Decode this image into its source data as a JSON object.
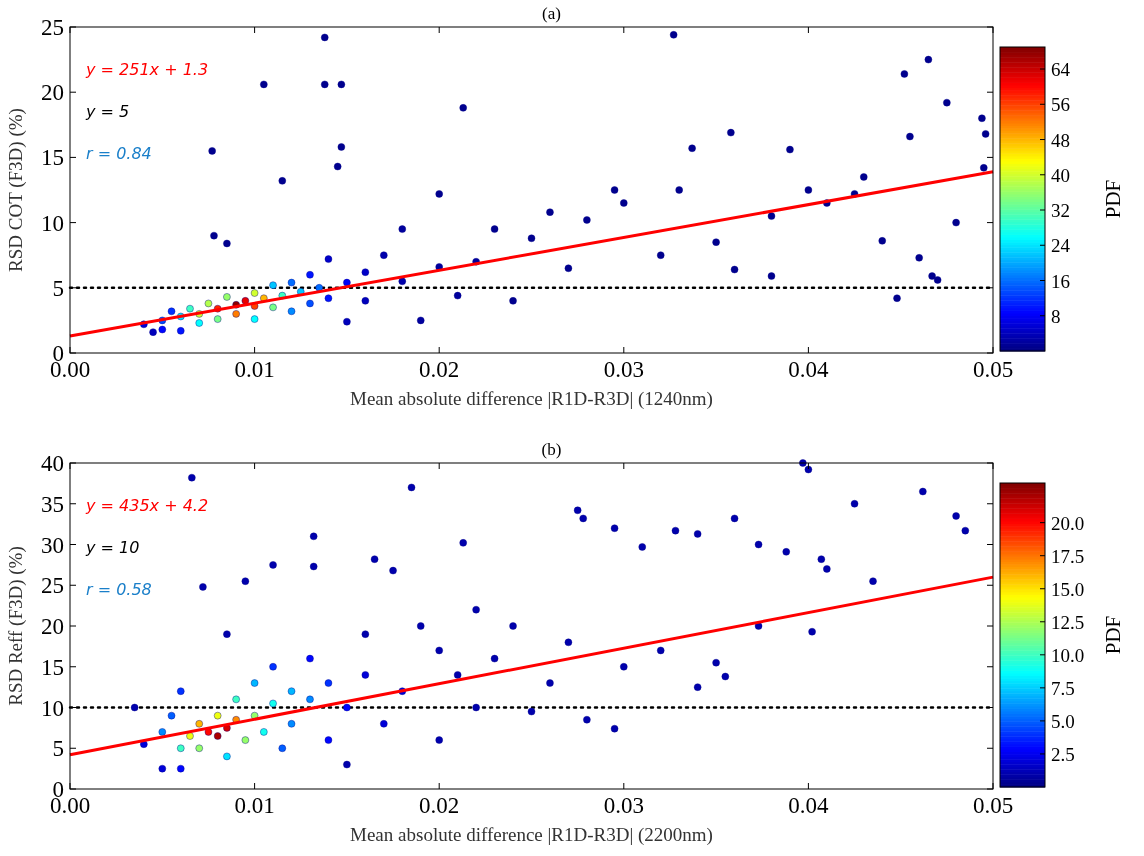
{
  "chart_data": [
    {
      "type": "scatter",
      "title": "(a)",
      "xlabel": "Mean absolute difference |R1D-R3D| (1240nm)",
      "ylabel": "RSD COT (F3D) (%)",
      "clabel": "PDF",
      "xlim": [
        0,
        0.05
      ],
      "xticks": [
        {
          "value": 0,
          "label": "0.00"
        },
        0.01,
        0.02,
        0.03,
        0.04,
        0.05
      ],
      "ylim": [
        0,
        25
      ],
      "yticks": [
        0,
        5,
        10,
        15,
        20,
        25
      ],
      "clim": [
        0,
        69
      ],
      "cticks": [
        8,
        16,
        24,
        32,
        40,
        48,
        56,
        64
      ],
      "series": [
        {
          "type": "scatter",
          "marker": "circle",
          "color": "#00008b",
          "x": [
            0.004,
            0.0045,
            0.005,
            0.005,
            0.0055,
            0.006,
            0.006,
            0.0065,
            0.007,
            0.007,
            0.0075,
            0.008,
            0.008,
            0.0085,
            0.009,
            0.009,
            0.0095,
            0.01,
            0.01,
            0.01,
            0.0105,
            0.011,
            0.011,
            0.0115,
            0.012,
            0.012,
            0.0125,
            0.013,
            0.013,
            0.0135,
            0.014,
            0.014,
            0.015,
            0.015,
            0.016,
            0.016,
            0.017,
            0.018,
            0.018,
            0.019,
            0.02,
            0.02,
            0.021,
            0.022,
            0.023,
            0.024,
            0.025,
            0.026,
            0.027,
            0.028,
            0.0295,
            0.03,
            0.032,
            0.033,
            0.035,
            0.036,
            0.038,
            0.038,
            0.04,
            0.041,
            0.0425,
            0.043,
            0.044,
            0.0448,
            0.046,
            0.0467,
            0.047,
            0.048,
            0.0495,
            0.0138,
            0.0327,
            0.0105,
            0.0138,
            0.0147,
            0.0213,
            0.0077,
            0.0147,
            0.0145,
            0.0465,
            0.0452,
            0.0475,
            0.0494,
            0.0496,
            0.0455,
            0.0358,
            0.039,
            0.0337,
            0.0115,
            0.0078,
            0.0085
          ],
          "values": [
            2.2,
            1.6,
            2.5,
            1.8,
            3.2,
            2.8,
            1.7,
            3.4,
            3.0,
            2.3,
            3.8,
            3.4,
            2.6,
            4.3,
            3.7,
            3.0,
            4.0,
            3.6,
            4.6,
            2.6,
            4.2,
            3.5,
            5.2,
            4.4,
            3.2,
            5.4,
            4.7,
            3.8,
            6.0,
            5.0,
            4.2,
            7.2,
            5.4,
            2.4,
            6.2,
            4.0,
            7.5,
            5.5,
            9.5,
            2.5,
            6.6,
            12.2,
            4.4,
            7.0,
            9.5,
            4.0,
            8.8,
            10.8,
            6.5,
            10.2,
            12.5,
            11.5,
            7.5,
            12.5,
            8.5,
            6.4,
            10.5,
            5.9,
            12.5,
            11.5,
            12.2,
            13.5,
            8.6,
            4.2,
            7.3,
            5.9,
            5.6,
            10.0,
            14.2,
            24.2,
            24.4,
            20.6,
            20.6,
            20.6,
            18.8,
            15.5,
            15.8,
            14.3,
            22.5,
            21.4,
            19.2,
            18.0,
            16.8,
            16.6,
            16.9,
            15.6,
            15.7,
            13.2,
            9.0,
            8.4
          ],
          "cvalues": [
            6,
            4,
            14,
            9,
            12,
            24,
            10,
            30,
            40,
            26,
            38,
            58,
            34,
            36,
            68,
            52,
            62,
            56,
            40,
            26,
            48,
            34,
            22,
            30,
            18,
            16,
            22,
            14,
            10,
            16,
            10,
            5,
            8,
            4,
            5,
            4,
            3,
            3,
            2,
            2,
            2,
            1,
            2,
            2,
            1,
            1,
            1,
            1,
            1,
            1,
            1,
            1,
            1,
            1,
            1,
            1,
            1,
            1,
            1,
            1,
            1,
            1,
            1,
            1,
            1,
            1,
            1,
            1,
            1,
            1,
            1,
            1,
            1,
            1,
            1,
            1,
            1,
            1,
            1,
            1,
            1,
            1,
            1,
            1,
            1,
            1,
            1,
            1,
            1,
            1
          ]
        },
        {
          "type": "line",
          "name": "y = 251x + 1.3",
          "color": "#ff0000",
          "x": [
            0,
            0.05
          ],
          "values": [
            1.3,
            13.9
          ]
        }
      ],
      "ref_lines": [
        {
          "axis": "y",
          "value": 5,
          "label": "y = 5",
          "color": "#000000",
          "line_style": "dotted"
        }
      ],
      "annotations": [
        "r = 0.84"
      ]
    },
    {
      "type": "scatter",
      "title": "(b)",
      "xlabel": "Mean absolute difference |R1D-R3D|  (2200nm)",
      "ylabel": "RSD Reff (F3D) (%)",
      "clabel": "PDF",
      "xlim": [
        0,
        0.05
      ],
      "xticks": [
        {
          "value": 0,
          "label": "0.00"
        },
        0.01,
        0.02,
        0.03,
        0.04,
        0.05
      ],
      "ylim": [
        0,
        40
      ],
      "yticks": [
        0,
        5,
        10,
        15,
        20,
        25,
        30,
        35,
        40
      ],
      "clim": [
        0,
        23
      ],
      "cticks": [
        2.5,
        {
          "value": 5,
          "label": "5.0"
        },
        7.5,
        {
          "value": 10,
          "label": "10.0"
        },
        12.5,
        {
          "value": 15,
          "label": "15.0"
        },
        17.5,
        {
          "value": 20,
          "label": "20.0"
        }
      ],
      "series": [
        {
          "type": "scatter",
          "marker": "circle",
          "color": "#00008b",
          "x": [
            0.004,
            0.0035,
            0.005,
            0.006,
            0.005,
            0.0055,
            0.006,
            0.006,
            0.0065,
            0.007,
            0.007,
            0.0075,
            0.008,
            0.008,
            0.0085,
            0.0085,
            0.009,
            0.009,
            0.0095,
            0.01,
            0.01,
            0.0105,
            0.011,
            0.011,
            0.0115,
            0.012,
            0.012,
            0.013,
            0.013,
            0.014,
            0.014,
            0.015,
            0.015,
            0.016,
            0.016,
            0.017,
            0.018,
            0.019,
            0.02,
            0.02,
            0.021,
            0.022,
            0.022,
            0.023,
            0.024,
            0.025,
            0.026,
            0.027,
            0.028,
            0.0295,
            0.03,
            0.032,
            0.034,
            0.035,
            0.0355,
            0.0373,
            0.0402,
            0.0435,
            0.0066,
            0.0185,
            0.0397,
            0.04,
            0.0462,
            0.0425,
            0.048,
            0.0485,
            0.0275,
            0.0278,
            0.0295,
            0.036,
            0.0328,
            0.034,
            0.0373,
            0.0388,
            0.0407,
            0.041,
            0.031,
            0.0132,
            0.0132,
            0.0072,
            0.0095,
            0.011,
            0.0213,
            0.0165,
            0.0175,
            0.0085
          ],
          "values": [
            5.5,
            10,
            2.5,
            2.5,
            7,
            9,
            5,
            12,
            6.5,
            8,
            5,
            7,
            6.5,
            9,
            7.5,
            4,
            8.5,
            11,
            6,
            9,
            13,
            7,
            10.5,
            15,
            5,
            12,
            8,
            11,
            16,
            13,
            6,
            10,
            3,
            14,
            19,
            8,
            12,
            20,
            17,
            6,
            14,
            22,
            10,
            16,
            20,
            9.5,
            13,
            18,
            8.5,
            7.4,
            15,
            17,
            12.5,
            15.5,
            13.8,
            20,
            19.3,
            25.5,
            38.2,
            37,
            40,
            39.2,
            36.5,
            35,
            33.5,
            31.7,
            34.2,
            33.2,
            32,
            33.2,
            31.7,
            31.3,
            30,
            29.1,
            28.2,
            27,
            29.7,
            31,
            27.3,
            24.8,
            25.5,
            27.5,
            30.2,
            28.2,
            26.8,
            19
          ],
          "cvalues": [
            2,
            1,
            2,
            3,
            6,
            5,
            10,
            4,
            14,
            16,
            12,
            20,
            22,
            14,
            21,
            8,
            17,
            10,
            12,
            12,
            7,
            9,
            9,
            4,
            5,
            7,
            6,
            6,
            3,
            4,
            3,
            3,
            1,
            2,
            1,
            2,
            2,
            1,
            1,
            1,
            1,
            1,
            1,
            1,
            1,
            1,
            1,
            1,
            1,
            1,
            1,
            1,
            1,
            1,
            1,
            1,
            1,
            1,
            1,
            1,
            1,
            1,
            1,
            1,
            1,
            1,
            1,
            1,
            1,
            1,
            1,
            1,
            1,
            1,
            1,
            1,
            1,
            1,
            1,
            1,
            1,
            1,
            1,
            1,
            1,
            1
          ]
        },
        {
          "type": "line",
          "name": "y = 435x + 4.2",
          "color": "#ff0000",
          "x": [
            0,
            0.05
          ],
          "values": [
            4.2,
            26.0
          ]
        }
      ],
      "ref_lines": [
        {
          "axis": "y",
          "value": 10,
          "label": "y = 10",
          "color": "#000000",
          "line_style": "dotted"
        }
      ],
      "annotations": [
        "r = 0.58"
      ]
    }
  ]
}
